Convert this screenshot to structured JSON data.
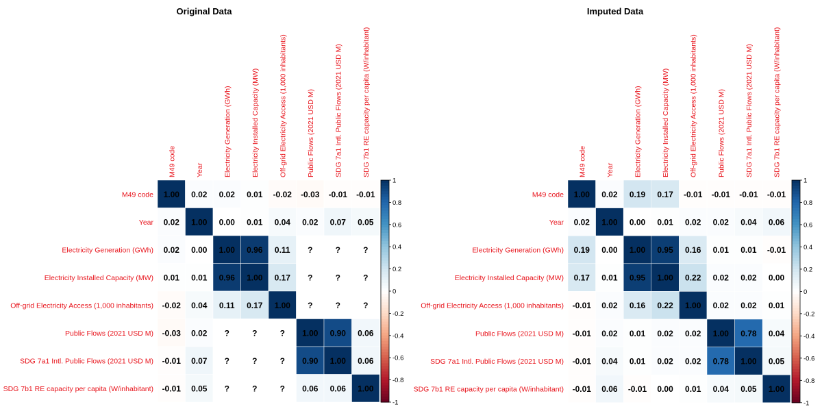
{
  "chart_data": [
    {
      "type": "heatmap",
      "title": "Original Data",
      "categories": [
        "M49 code",
        "Year",
        "Electricity Generation (GWh)",
        "Electricity Installed Capacity (MW)",
        "Off-grid Electricity Access (1,000 inhabitants)",
        "Public Flows (2021 USD M)",
        "SDG 7a1 Intl. Public Flows (2021 USD M)",
        "SDG 7b1 RE capacity per capita (W/inhabitant)"
      ],
      "matrix": [
        [
          1.0,
          0.02,
          0.02,
          0.01,
          -0.02,
          -0.03,
          -0.01,
          -0.01
        ],
        [
          0.02,
          1.0,
          0.0,
          0.01,
          0.04,
          0.02,
          0.07,
          0.05
        ],
        [
          0.02,
          0.0,
          1.0,
          0.96,
          0.11,
          null,
          null,
          null
        ],
        [
          0.01,
          0.01,
          0.96,
          1.0,
          0.17,
          null,
          null,
          null
        ],
        [
          -0.02,
          0.04,
          0.11,
          0.17,
          1.0,
          null,
          null,
          null
        ],
        [
          -0.03,
          0.02,
          null,
          null,
          null,
          1.0,
          0.9,
          0.06
        ],
        [
          -0.01,
          0.07,
          null,
          null,
          null,
          0.9,
          1.0,
          0.06
        ],
        [
          -0.01,
          0.05,
          null,
          null,
          null,
          0.06,
          0.06,
          1.0
        ]
      ],
      "missing_label": "?",
      "colorbar_range": [
        -1,
        1
      ],
      "colorbar_ticks": [
        "1",
        "0.8",
        "0.6",
        "0.4",
        "0.2",
        "0",
        "-0.2",
        "-0.4",
        "-0.6",
        "-0.8",
        "-1"
      ]
    },
    {
      "type": "heatmap",
      "title": "Imputed Data",
      "categories": [
        "M49 code",
        "Year",
        "Electricity Generation (GWh)",
        "Electricity Installed Capacity (MW)",
        "Off-grid Electricity Access (1,000 inhabitants)",
        "Public Flows (2021 USD M)",
        "SDG 7a1 Intl. Public Flows (2021 USD M)",
        "SDG 7b1 RE capacity per capita (W/inhabitant)"
      ],
      "matrix": [
        [
          1.0,
          0.02,
          0.19,
          0.17,
          -0.01,
          -0.01,
          -0.01,
          -0.01
        ],
        [
          0.02,
          1.0,
          0.0,
          0.01,
          0.02,
          0.02,
          0.04,
          0.06
        ],
        [
          0.19,
          0.0,
          1.0,
          0.95,
          0.16,
          0.01,
          0.01,
          -0.01
        ],
        [
          0.17,
          0.01,
          0.95,
          1.0,
          0.22,
          0.02,
          0.02,
          0.0
        ],
        [
          -0.01,
          0.02,
          0.16,
          0.22,
          1.0,
          0.02,
          0.02,
          0.01
        ],
        [
          -0.01,
          0.02,
          0.01,
          0.02,
          0.02,
          1.0,
          0.78,
          0.04
        ],
        [
          -0.01,
          0.04,
          0.01,
          0.02,
          0.02,
          0.78,
          1.0,
          0.05
        ],
        [
          -0.01,
          0.06,
          -0.01,
          0.0,
          0.01,
          0.04,
          0.05,
          1.0
        ]
      ],
      "missing_label": "?",
      "colorbar_range": [
        -1,
        1
      ],
      "colorbar_ticks": [
        "1",
        "0.8",
        "0.6",
        "0.4",
        "0.2",
        "0",
        "-0.2",
        "-0.4",
        "-0.6",
        "-0.8",
        "-1"
      ]
    }
  ],
  "colors": {
    "label_text": "#e8141c",
    "value_text": "#000000",
    "missing_cell": "#ffffff",
    "palette": [
      "#67001f",
      "#b2182b",
      "#d6604d",
      "#f4a582",
      "#fddbc7",
      "#ffffff",
      "#d1e5f0",
      "#92c5de",
      "#4393c3",
      "#2166ac",
      "#053061"
    ]
  }
}
